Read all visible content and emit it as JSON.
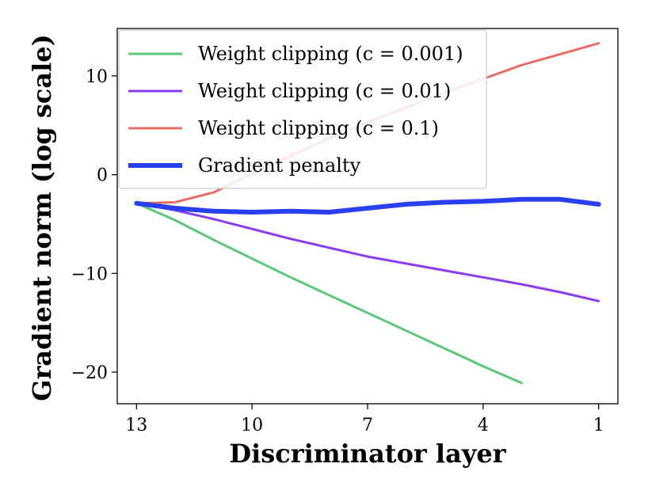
{
  "chart_data": {
    "type": "line",
    "xlabel": "Discriminator layer",
    "ylabel": "Gradient norm (log scale)",
    "x_ticks": [
      13,
      10,
      7,
      4,
      1
    ],
    "y_ticks": [
      10,
      0,
      -10,
      -20
    ],
    "y_tick_labels": [
      "10",
      "0",
      "−10",
      "−20"
    ],
    "xlim": [
      13.5,
      0.5
    ],
    "ylim": [
      -23.2,
      14.8
    ],
    "x_reversed": true,
    "grid": false,
    "legend_position": "top-left",
    "series": [
      {
        "name": "Weight clipping (c = 0.001)",
        "color": "#5ac878",
        "x": [
          13,
          12,
          11,
          10,
          9,
          8,
          7,
          6,
          5,
          4,
          3,
          2
        ],
        "y": [
          -2.9,
          -4.6,
          -6.6,
          -8.5,
          -10.4,
          -12.2,
          -14.0,
          -15.8,
          -17.6,
          -19.4,
          -21.1,
          null
        ]
      },
      {
        "name": "Weight clipping (c = 0.01)",
        "color": "#8a3cf0",
        "x": [
          13,
          12,
          11,
          10,
          9,
          8,
          7,
          6,
          5,
          4,
          3,
          2,
          1
        ],
        "y": [
          -2.9,
          -3.6,
          -4.5,
          -5.5,
          -6.5,
          -7.4,
          -8.3,
          -9.0,
          -9.7,
          -10.4,
          -11.1,
          -11.9,
          -12.8
        ]
      },
      {
        "name": "Weight clipping (c = 0.1)",
        "color": "#e66e64",
        "x": [
          13,
          12,
          11,
          10,
          9,
          8,
          7,
          6,
          5,
          4,
          3,
          2,
          1
        ],
        "y": [
          -2.9,
          -2.8,
          -1.8,
          0.1,
          1.9,
          3.7,
          5.3,
          6.8,
          8.3,
          9.7,
          11.1,
          12.2,
          13.3
        ]
      },
      {
        "name": "Gradient penalty",
        "color": "#2840f0",
        "x": [
          13,
          12,
          11,
          10,
          9,
          8,
          7,
          6,
          5,
          4,
          3,
          2,
          1
        ],
        "y": [
          -2.9,
          -3.4,
          -3.7,
          -3.8,
          -3.7,
          -3.8,
          -3.4,
          -3.0,
          -2.8,
          -2.7,
          -2.5,
          -2.5,
          -3.0
        ]
      }
    ]
  }
}
